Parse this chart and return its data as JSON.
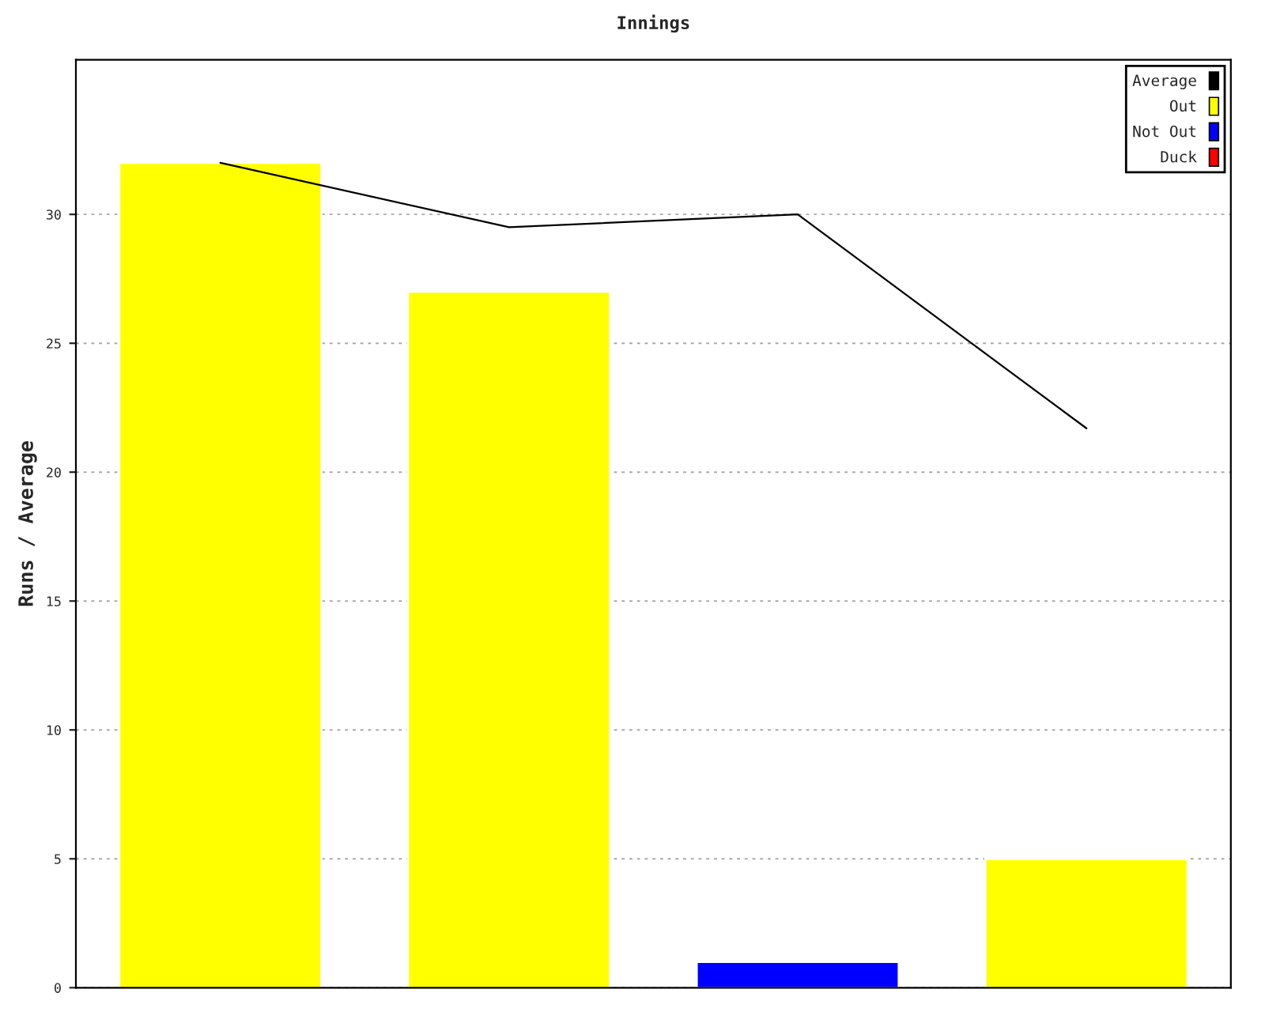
{
  "chart_data": {
    "type": "bar",
    "title": "Innings",
    "ylabel": "Runs / Average",
    "categories": [
      null,
      null,
      null,
      null
    ],
    "series": [
      {
        "name": "Average",
        "type": "line",
        "color": "#000000",
        "values": [
          32,
          29.5,
          30,
          21.7
        ]
      },
      {
        "name": "Out",
        "color": "#ffff00",
        "values": [
          32,
          27,
          null,
          5
        ]
      },
      {
        "name": "Not Out",
        "color": "#0000ff",
        "values": [
          null,
          null,
          1,
          null
        ]
      },
      {
        "name": "Duck",
        "color": "#ff0000",
        "values": [
          null,
          null,
          null,
          null
        ]
      }
    ],
    "ylim": [
      0,
      36
    ],
    "yticks": [
      0,
      5,
      10,
      15,
      20,
      25,
      30
    ],
    "grid": "y",
    "legend": "top right",
    "tick_labels": "y",
    "marker": "none",
    "line_style": "solid"
  }
}
